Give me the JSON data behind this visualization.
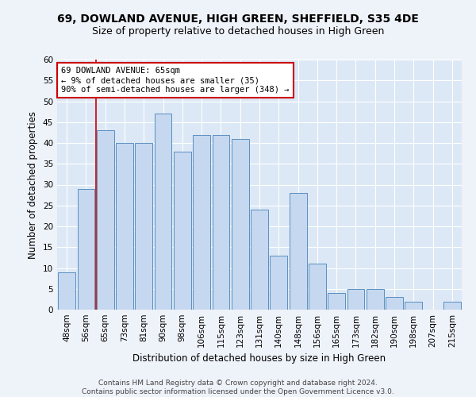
{
  "title": "69, DOWLAND AVENUE, HIGH GREEN, SHEFFIELD, S35 4DE",
  "subtitle": "Size of property relative to detached houses in High Green",
  "xlabel": "Distribution of detached houses by size in High Green",
  "ylabel": "Number of detached properties",
  "categories": [
    "48sqm",
    "56sqm",
    "65sqm",
    "73sqm",
    "81sqm",
    "90sqm",
    "98sqm",
    "106sqm",
    "115sqm",
    "123sqm",
    "131sqm",
    "140sqm",
    "148sqm",
    "156sqm",
    "165sqm",
    "173sqm",
    "182sqm",
    "190sqm",
    "198sqm",
    "207sqm",
    "215sqm"
  ],
  "values": [
    9,
    29,
    43,
    40,
    40,
    47,
    38,
    42,
    42,
    41,
    24,
    13,
    28,
    11,
    4,
    5,
    5,
    3,
    2,
    0,
    2
  ],
  "bar_color": "#c5d8f0",
  "bar_edge_color": "#5a8fc0",
  "highlight_index": 2,
  "highlight_line_color": "#cc0000",
  "annotation_line1": "69 DOWLAND AVENUE: 65sqm",
  "annotation_line2": "← 9% of detached houses are smaller (35)",
  "annotation_line3": "90% of semi-detached houses are larger (348) →",
  "annotation_box_color": "#ffffff",
  "annotation_box_edge_color": "#cc0000",
  "ylim": [
    0,
    60
  ],
  "yticks": [
    0,
    5,
    10,
    15,
    20,
    25,
    30,
    35,
    40,
    45,
    50,
    55,
    60
  ],
  "footer_text": "Contains HM Land Registry data © Crown copyright and database right 2024.\nContains public sector information licensed under the Open Government Licence v3.0.",
  "title_fontsize": 10,
  "subtitle_fontsize": 9,
  "ylabel_fontsize": 8.5,
  "xlabel_fontsize": 8.5,
  "tick_fontsize": 7.5,
  "annotation_fontsize": 7.5,
  "footer_fontsize": 6.5,
  "background_color": "#eef2f9",
  "grid_color": "#ffffff",
  "axes_bg_color": "#dce8f5"
}
